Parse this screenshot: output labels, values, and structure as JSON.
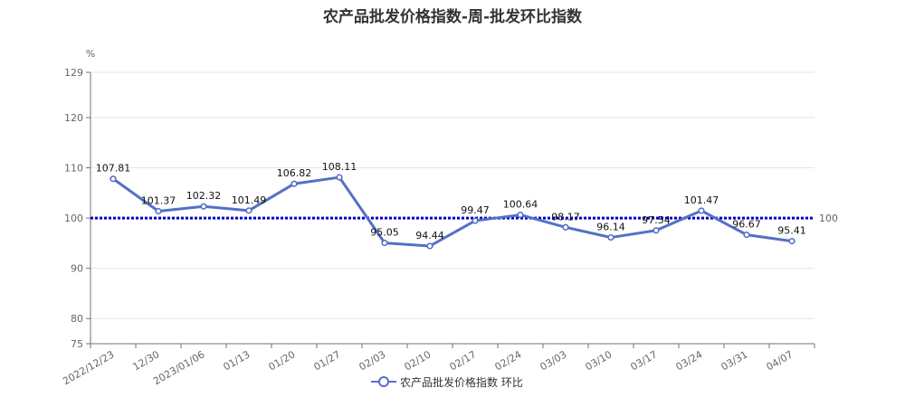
{
  "chart_data": {
    "type": "line",
    "title": "农产品批发价格指数-周-批发环比指数",
    "ylabel": "%",
    "ylim": [
      75,
      129
    ],
    "yticks": [
      75,
      80,
      90,
      100,
      110,
      120,
      129
    ],
    "categories": [
      "2022/12/23",
      "12/30",
      "2023/01/06",
      "01/13",
      "01/20",
      "01/27",
      "02/03",
      "02/10",
      "02/17",
      "02/24",
      "03/03",
      "03/10",
      "03/17",
      "03/24",
      "03/31",
      "04/07"
    ],
    "series": [
      {
        "name": "农产品批发价格指数 环比",
        "values": [
          107.81,
          101.37,
          102.32,
          101.49,
          106.82,
          108.11,
          95.05,
          94.44,
          99.47,
          100.64,
          98.17,
          96.14,
          97.54,
          101.47,
          96.67,
          95.41
        ],
        "color": "#5470c6"
      }
    ],
    "reference_line": {
      "value": 100,
      "label": "100",
      "color": "#0000cc"
    },
    "grid": true,
    "legend": "bottom-center"
  }
}
